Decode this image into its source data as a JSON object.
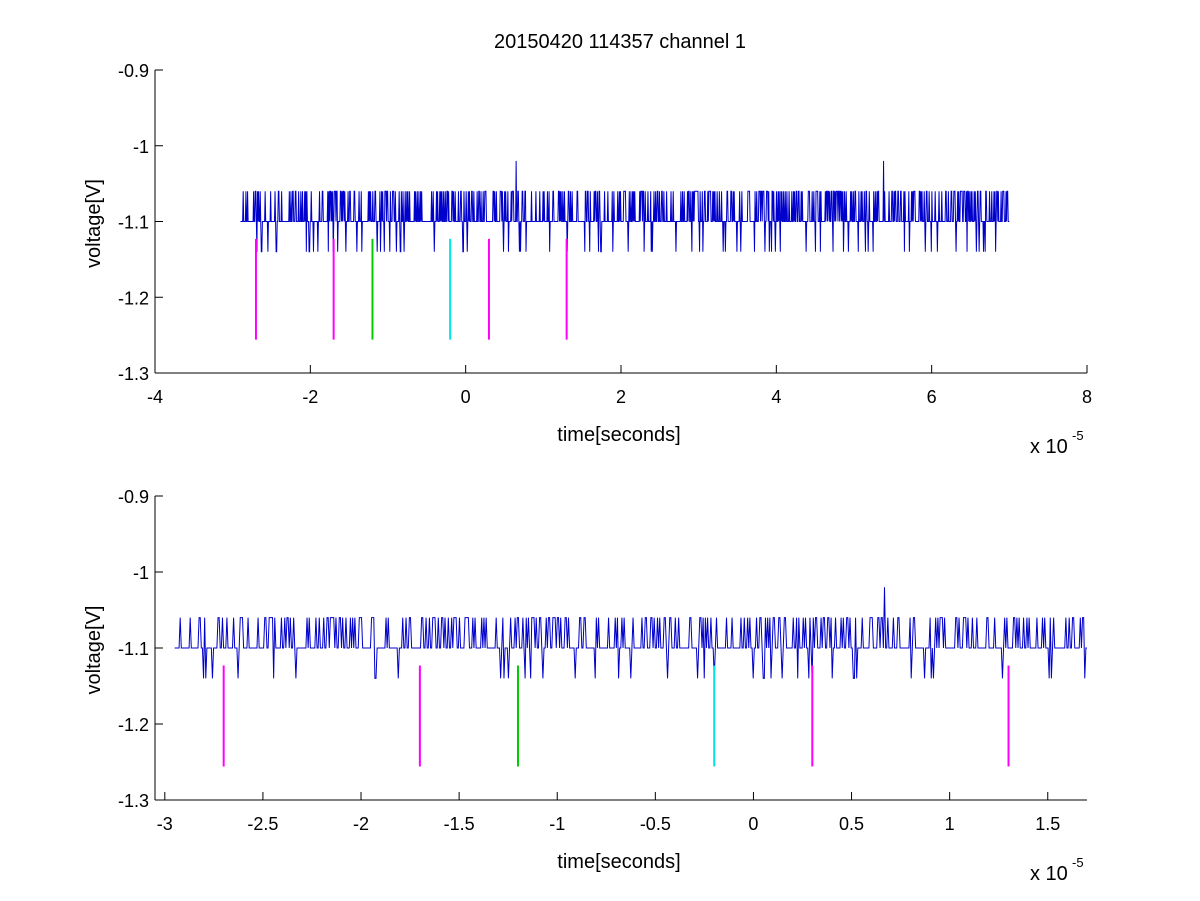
{
  "chart_data": [
    {
      "type": "line",
      "title": "20150420 114357 channel 1",
      "xlabel": "time[seconds]",
      "ylabel": "voltage[V]",
      "x_multiplier_label": {
        "base": "x 10",
        "exponent": "-5"
      },
      "xlim": [
        -4,
        8
      ],
      "ylim": [
        -1.3,
        -0.9
      ],
      "y_reversed": true,
      "grid": false,
      "x_ticks": [
        -4,
        -2,
        0,
        2,
        4,
        6,
        8
      ],
      "x_tick_labels": [
        "-4",
        "-2",
        "0",
        "2",
        "4",
        "6",
        "8"
      ],
      "y_ticks": [
        -1.3,
        -1.2,
        -1.1,
        -1,
        -0.9
      ],
      "y_tick_labels": [
        "-1.3",
        "-1.2",
        "-1.1",
        "-1",
        "-0.9"
      ],
      "series": [
        {
          "color": "#0000cc",
          "levels": [
            -1.14,
            -1.1,
            -1.06,
            -1.02
          ],
          "x_start": -2.9,
          "x_end": 7.0,
          "baseline": -1.1,
          "high_level": -1.06,
          "low_level": -1.14,
          "peaks": [
            {
              "x": 0.65,
              "y": -1.02
            },
            {
              "x": 5.38,
              "y": -1.02
            }
          ]
        }
      ],
      "markers": [
        {
          "x": -2.7,
          "y_from": -1.123,
          "y_to": -1.256,
          "color": "#ff00ff"
        },
        {
          "x": -1.7,
          "y_from": -1.123,
          "y_to": -1.256,
          "color": "#ff00ff"
        },
        {
          "x": -1.2,
          "y_from": -1.123,
          "y_to": -1.256,
          "color": "#00cc00"
        },
        {
          "x": -0.2,
          "y_from": -1.123,
          "y_to": -1.256,
          "color": "#00e5e5"
        },
        {
          "x": 0.3,
          "y_from": -1.123,
          "y_to": -1.256,
          "color": "#ff00ff"
        },
        {
          "x": 1.3,
          "y_from": -1.123,
          "y_to": -1.256,
          "color": "#ff00ff"
        }
      ]
    },
    {
      "type": "line",
      "title": "",
      "xlabel": "time[seconds]",
      "ylabel": "voltage[V]",
      "x_multiplier_label": {
        "base": "x 10",
        "exponent": "-5"
      },
      "xlim": [
        -3.05,
        1.7
      ],
      "ylim": [
        -1.3,
        -0.9
      ],
      "y_reversed": true,
      "grid": false,
      "x_ticks": [
        -3,
        -2.5,
        -2,
        -1.5,
        -1,
        -0.5,
        0,
        0.5,
        1,
        1.5
      ],
      "x_tick_labels": [
        "-3",
        "-2.5",
        "-2",
        "-1.5",
        "-1",
        "-0.5",
        "0",
        "0.5",
        "1",
        "1.5"
      ],
      "y_ticks": [
        -1.3,
        -1.2,
        -1.1,
        -1,
        -0.9
      ],
      "y_tick_labels": [
        "-1.3",
        "-1.2",
        "-1.1",
        "-1",
        "-0.9"
      ],
      "series": [
        {
          "color": "#0000cc",
          "levels": [
            -1.14,
            -1.1,
            -1.06,
            -1.02
          ],
          "x_start": -2.95,
          "x_end": 1.7,
          "baseline": -1.1,
          "high_level": -1.06,
          "low_level": -1.14,
          "peaks": [
            {
              "x": 0.67,
              "y": -1.02
            }
          ]
        }
      ],
      "markers": [
        {
          "x": -2.7,
          "y_from": -1.123,
          "y_to": -1.256,
          "color": "#ff00ff"
        },
        {
          "x": -1.7,
          "y_from": -1.123,
          "y_to": -1.256,
          "color": "#ff00ff"
        },
        {
          "x": -1.2,
          "y_from": -1.123,
          "y_to": -1.256,
          "color": "#00cc00"
        },
        {
          "x": -0.2,
          "y_from": -1.123,
          "y_to": -1.256,
          "color": "#00e5e5"
        },
        {
          "x": 0.3,
          "y_from": -1.123,
          "y_to": -1.256,
          "color": "#ff00ff"
        },
        {
          "x": 1.3,
          "y_from": -1.123,
          "y_to": -1.256,
          "color": "#ff00ff"
        }
      ]
    }
  ]
}
